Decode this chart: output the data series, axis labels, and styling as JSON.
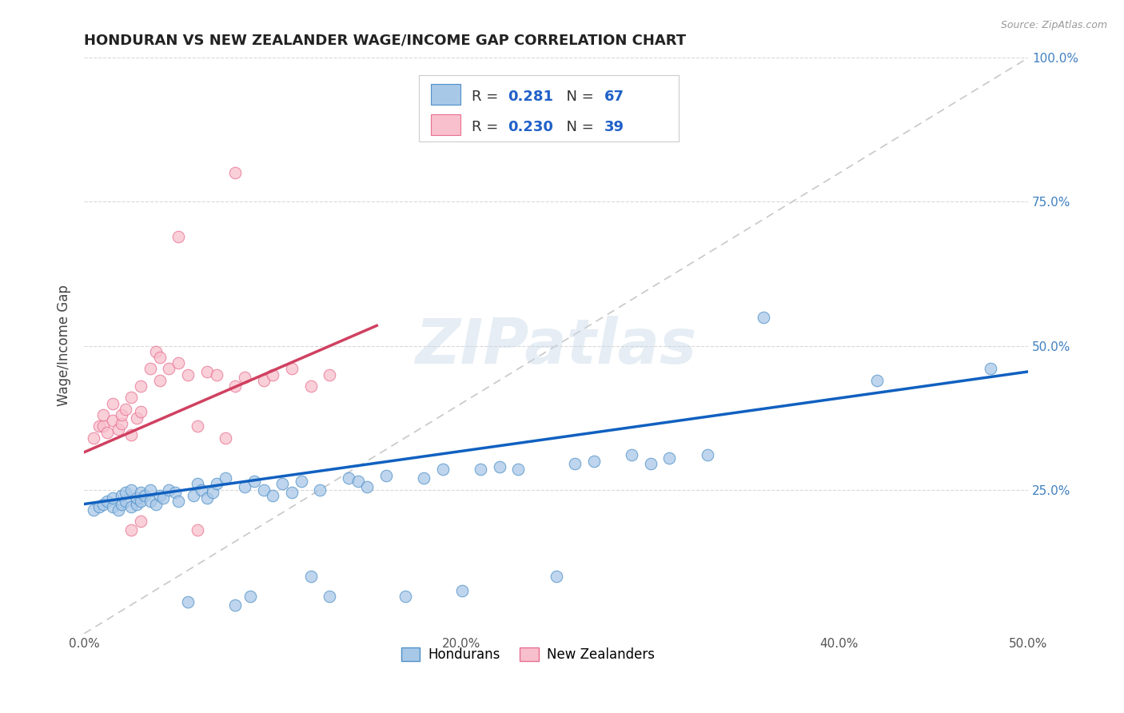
{
  "title": "HONDURAN VS NEW ZEALANDER WAGE/INCOME GAP CORRELATION CHART",
  "source": "Source: ZipAtlas.com",
  "ylabel": "Wage/Income Gap",
  "xlim": [
    0.0,
    0.5
  ],
  "ylim": [
    0.0,
    1.0
  ],
  "xticks": [
    0.0,
    0.1,
    0.2,
    0.3,
    0.4,
    0.5
  ],
  "xticklabels": [
    "0.0%",
    "",
    "20.0%",
    "",
    "40.0%",
    "50.0%"
  ],
  "yticks": [
    0.0,
    0.25,
    0.5,
    0.75,
    1.0
  ],
  "yticklabels_right": [
    "",
    "25.0%",
    "50.0%",
    "75.0%",
    "100.0%"
  ],
  "blue_color": "#a8c8e8",
  "pink_color": "#f8c0cc",
  "blue_edge": "#5090c8",
  "pink_edge": "#e87090",
  "trend_blue": "#1060c0",
  "trend_pink": "#d04060",
  "diag_color": "#c8c8c8",
  "grid_color": "#d8d8d8",
  "R_blue": 0.281,
  "N_blue": 67,
  "R_pink": 0.23,
  "N_pink": 39,
  "legend_label_color": "#333333",
  "legend_value_color": "#2060c8",
  "blue_trend_x": [
    0.0,
    0.5
  ],
  "blue_trend_y": [
    0.225,
    0.455
  ],
  "pink_trend_x": [
    0.0,
    0.155
  ],
  "pink_trend_y": [
    0.315,
    0.535
  ],
  "watermark": "ZIPatlas",
  "hondurans_x": [
    0.005,
    0.008,
    0.01,
    0.012,
    0.015,
    0.015,
    0.018,
    0.02,
    0.02,
    0.022,
    0.022,
    0.025,
    0.025,
    0.028,
    0.028,
    0.03,
    0.03,
    0.032,
    0.035,
    0.035,
    0.038,
    0.04,
    0.042,
    0.045,
    0.048,
    0.05,
    0.055,
    0.058,
    0.06,
    0.062,
    0.065,
    0.068,
    0.07,
    0.075,
    0.08,
    0.085,
    0.088,
    0.09,
    0.095,
    0.1,
    0.105,
    0.11,
    0.115,
    0.12,
    0.125,
    0.13,
    0.14,
    0.145,
    0.15,
    0.16,
    0.17,
    0.18,
    0.19,
    0.2,
    0.21,
    0.22,
    0.23,
    0.25,
    0.26,
    0.27,
    0.29,
    0.3,
    0.31,
    0.33,
    0.36,
    0.42,
    0.48
  ],
  "hondurans_y": [
    0.215,
    0.22,
    0.225,
    0.23,
    0.22,
    0.235,
    0.215,
    0.225,
    0.24,
    0.23,
    0.245,
    0.22,
    0.25,
    0.225,
    0.235,
    0.23,
    0.245,
    0.24,
    0.23,
    0.25,
    0.225,
    0.24,
    0.235,
    0.25,
    0.245,
    0.23,
    0.055,
    0.24,
    0.26,
    0.25,
    0.235,
    0.245,
    0.26,
    0.27,
    0.05,
    0.255,
    0.065,
    0.265,
    0.25,
    0.24,
    0.26,
    0.245,
    0.265,
    0.1,
    0.25,
    0.065,
    0.27,
    0.265,
    0.255,
    0.275,
    0.065,
    0.27,
    0.285,
    0.075,
    0.285,
    0.29,
    0.285,
    0.1,
    0.295,
    0.3,
    0.31,
    0.295,
    0.305,
    0.31,
    0.55,
    0.44,
    0.46
  ],
  "nz_x": [
    0.005,
    0.008,
    0.01,
    0.01,
    0.012,
    0.015,
    0.015,
    0.018,
    0.02,
    0.02,
    0.022,
    0.025,
    0.025,
    0.028,
    0.03,
    0.03,
    0.035,
    0.038,
    0.04,
    0.04,
    0.045,
    0.05,
    0.055,
    0.06,
    0.065,
    0.07,
    0.075,
    0.08,
    0.085,
    0.095,
    0.1,
    0.11,
    0.12,
    0.13,
    0.06,
    0.025,
    0.03,
    0.05,
    0.08
  ],
  "nz_y": [
    0.34,
    0.36,
    0.36,
    0.38,
    0.35,
    0.37,
    0.4,
    0.355,
    0.365,
    0.38,
    0.39,
    0.345,
    0.41,
    0.375,
    0.385,
    0.43,
    0.46,
    0.49,
    0.44,
    0.48,
    0.46,
    0.47,
    0.45,
    0.36,
    0.455,
    0.45,
    0.34,
    0.43,
    0.445,
    0.44,
    0.45,
    0.46,
    0.43,
    0.45,
    0.18,
    0.18,
    0.195,
    0.69,
    0.8
  ]
}
